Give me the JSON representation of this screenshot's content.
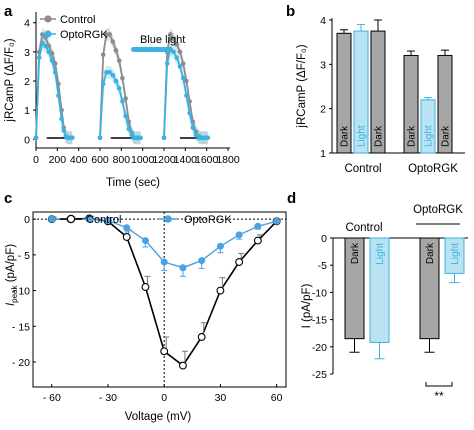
{
  "panels": {
    "a": "a",
    "b": "b",
    "c": "c",
    "d": "d"
  },
  "colors": {
    "control": "#8c8c8c",
    "optorgk": "#3bb3e0",
    "bar_dark": "#a6a6a6",
    "bar_light": "#b9e2f2",
    "light_bar": "#3bb3e0",
    "control_line": "#000000",
    "optorgk_iv": "#4aa3e0"
  },
  "chart_data": [
    {
      "panel": "a",
      "type": "line",
      "xlabel": "Time (sec)",
      "ylabel": "jRCamP (ΔF/F₀)",
      "xticks": [
        0,
        200,
        400,
        600,
        800,
        1000,
        1200,
        1400,
        1600,
        1800
      ],
      "yticks": [
        0,
        1,
        2,
        3,
        4
      ],
      "xlim": [
        0,
        1800
      ],
      "ylim": [
        -0.3,
        4.3
      ],
      "legend": [
        "Control",
        "OptoRGK"
      ],
      "light_label": "Blue light",
      "light_periods": [
        [
          100,
          300
        ],
        [
          700,
          900
        ],
        [
          1350,
          1550
        ]
      ],
      "series": [
        {
          "name": "Control",
          "x": [
            0,
            30,
            60,
            90,
            120,
            150,
            180,
            210,
            240,
            260,
            280,
            300,
            320,
            340,
            600,
            630,
            660,
            690,
            720,
            750,
            780,
            810,
            840,
            870,
            900,
            920,
            940,
            960,
            980,
            1200,
            1230,
            1260,
            1290,
            1320,
            1350,
            1380,
            1410,
            1440,
            1470,
            1500,
            1530,
            1550,
            1570,
            1590,
            1610
          ],
          "y": [
            0.05,
            3.0,
            3.6,
            3.5,
            3.2,
            2.95,
            2.6,
            1.9,
            1.0,
            0.4,
            0.1,
            0.05,
            0.05,
            0.05,
            0.05,
            2.9,
            3.6,
            3.6,
            3.35,
            3.05,
            2.7,
            2.1,
            1.4,
            0.6,
            0.2,
            0.05,
            0.05,
            0.05,
            0.05,
            0.05,
            3.0,
            3.6,
            3.45,
            3.25,
            3.0,
            2.6,
            2.0,
            1.3,
            0.6,
            0.25,
            0.1,
            0.05,
            0.05,
            0.05,
            0.05
          ]
        },
        {
          "name": "OptoRGK",
          "x": [
            0,
            30,
            60,
            90,
            120,
            150,
            180,
            210,
            240,
            260,
            280,
            300,
            320,
            340,
            600,
            630,
            660,
            690,
            720,
            750,
            780,
            810,
            840,
            870,
            900,
            920,
            940,
            960,
            980,
            1200,
            1230,
            1260,
            1290,
            1320,
            1350,
            1380,
            1410,
            1440,
            1470,
            1500,
            1530,
            1550,
            1570,
            1590,
            1610
          ],
          "y": [
            0.05,
            2.8,
            3.3,
            3.2,
            3.0,
            2.7,
            2.3,
            1.5,
            0.7,
            0.3,
            0.1,
            0.05,
            0.05,
            0.05,
            0.05,
            1.9,
            2.3,
            2.3,
            2.2,
            2.0,
            1.75,
            1.3,
            0.8,
            0.35,
            0.15,
            0.05,
            0.05,
            0.05,
            0.05,
            0.05,
            2.6,
            3.1,
            3.0,
            2.8,
            2.5,
            2.1,
            1.5,
            0.9,
            0.4,
            0.15,
            0.05,
            0.05,
            0.05,
            0.05,
            0.05
          ]
        }
      ]
    },
    {
      "panel": "b",
      "type": "bar",
      "ylabel": "jRCamP (ΔF/F₀)",
      "yticks": [
        1,
        2,
        3,
        4
      ],
      "ylim": [
        1,
        4
      ],
      "groups": [
        "Control",
        "OptoRGK"
      ],
      "bars": [
        {
          "group": "Control",
          "label": "Dark",
          "value": 3.7,
          "err": 0.08
        },
        {
          "group": "Control",
          "label": "Light",
          "value": 3.75,
          "err": 0.15
        },
        {
          "group": "Control",
          "label": "Dark",
          "value": 3.75,
          "err": 0.25
        },
        {
          "group": "OptoRGK",
          "label": "Dark",
          "value": 3.2,
          "err": 0.1
        },
        {
          "group": "OptoRGK",
          "label": "Light",
          "value": 2.2,
          "err": 0.05
        },
        {
          "group": "OptoRGK",
          "label": "Dark",
          "value": 3.2,
          "err": 0.12
        }
      ]
    },
    {
      "panel": "c",
      "type": "line",
      "xlabel": "Voltage (mV)",
      "ylabel_main": "I",
      "ylabel_sub": "peak",
      "ylabel_unit": " (pA/pF)",
      "xticks": [
        -60,
        -30,
        0,
        30,
        60
      ],
      "yticks": [
        0,
        -5,
        -10,
        -15,
        -20
      ],
      "xlim": [
        -70,
        65
      ],
      "ylim": [
        -23.5,
        1
      ],
      "legend": [
        "Control",
        "OptoRGK"
      ],
      "series": [
        {
          "name": "Control",
          "x": [
            -60,
            -50,
            -40,
            -30,
            -20,
            -10,
            0,
            10,
            20,
            30,
            40,
            50,
            60
          ],
          "y": [
            0,
            0,
            0.1,
            -0.3,
            -2.5,
            -9.5,
            -18.5,
            -20.5,
            -16.5,
            -10,
            -6,
            -3,
            -0.3
          ],
          "err": [
            0.3,
            0.3,
            0.3,
            0.5,
            1.0,
            1.5,
            2.0,
            2.0,
            2.0,
            1.8,
            1.2,
            0.8,
            0.3
          ]
        },
        {
          "name": "OptoRGK",
          "x": [
            -60,
            -50,
            -40,
            -30,
            -20,
            -10,
            0,
            10,
            20,
            30,
            40,
            50,
            60
          ],
          "y": [
            0,
            0,
            0,
            -0.2,
            -1.2,
            -3.0,
            -6.0,
            -6.8,
            -5.8,
            -3.8,
            -2.2,
            -1.0,
            -0.3
          ],
          "err": [
            0.2,
            0.2,
            0.2,
            0.3,
            0.6,
            0.9,
            1.2,
            1.2,
            1.1,
            0.9,
            0.6,
            0.4,
            0.2
          ]
        }
      ]
    },
    {
      "panel": "d",
      "type": "bar",
      "ylabel": "I (pA/pF)",
      "yticks": [
        0,
        -5,
        -10,
        -15,
        -20,
        -25
      ],
      "ylim": [
        -25,
        0
      ],
      "groups": [
        "Control",
        "OptoRGK"
      ],
      "bars": [
        {
          "group": "Control",
          "label": "Dark",
          "value": -18.5,
          "err": 2.5
        },
        {
          "group": "Control",
          "label": "Light",
          "value": -19.2,
          "err": 3.0
        },
        {
          "group": "OptoRGK",
          "label": "Dark",
          "value": -18.5,
          "err": 2.5
        },
        {
          "group": "OptoRGK",
          "label": "Light",
          "value": -6.5,
          "err": 1.7
        }
      ],
      "significance": "**"
    }
  ]
}
